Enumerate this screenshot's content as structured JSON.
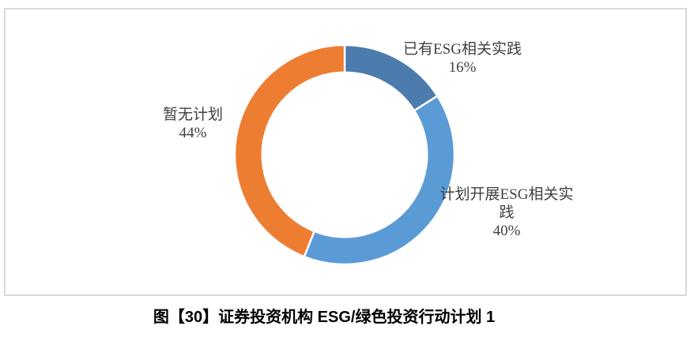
{
  "chart_data": {
    "type": "pie",
    "subtype": "donut",
    "title": "图【30】证券投资机构 ESG/绿色投资行动计划 1",
    "categories": [
      "已有ESG相关实践",
      "计划开展ESG相关实践",
      "暂无计划"
    ],
    "values": [
      16,
      40,
      44
    ],
    "unit": "%",
    "colors": [
      "#4B7CAD",
      "#5B9BD5",
      "#ED7D31"
    ],
    "start_angle_deg": 0,
    "direction": "clockwise",
    "hole_ratio": 0.75,
    "separator_color": "#ffffff",
    "legend_position": "none",
    "data_labels": {
      "style": "category name and percent, outside slices",
      "items": [
        {
          "lines": [
            "已有ESG相关实践",
            "16%"
          ]
        },
        {
          "lines": [
            "计划开展ESG相关实",
            "践",
            "40%"
          ]
        },
        {
          "lines": [
            "暂无计划",
            "44%"
          ]
        }
      ]
    }
  },
  "caption": {
    "text": "图【30】证券投资机构 ESG/绿色投资行动计划 1"
  },
  "styles": {
    "label_color": "#404040",
    "caption_color": "#000000",
    "frame_border_color": "#d9d9d9",
    "background": "#ffffff"
  }
}
